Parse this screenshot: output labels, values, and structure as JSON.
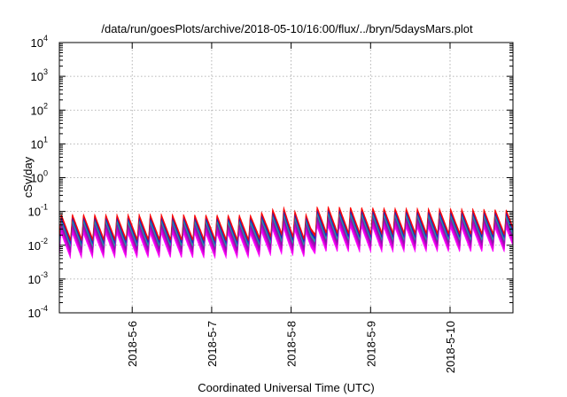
{
  "chart_data": {
    "type": "area",
    "title": "/data/run/goesPlots/archive/2018-05-10/16:00/flux/../bryn/5daysMars.plot",
    "xlabel": "Coordinated Universal Time (UTC)",
    "ylabel": "cSv/day",
    "yscale": "log",
    "ylim": [
      0.0001,
      10000
    ],
    "xlim": [
      "2018-05-05T02:00",
      "2018-05-10T19:00"
    ],
    "grid": true,
    "legend": "none",
    "y_ticks": [
      {
        "base": "10",
        "exp": "-4",
        "value": 0.0001
      },
      {
        "base": "10",
        "exp": "-3",
        "value": 0.001
      },
      {
        "base": "10",
        "exp": "-2",
        "value": 0.01
      },
      {
        "base": "10",
        "exp": "-1",
        "value": 0.1
      },
      {
        "base": "10",
        "exp": "0",
        "value": 1
      },
      {
        "base": "10",
        "exp": "1",
        "value": 10
      },
      {
        "base": "10",
        "exp": "2",
        "value": 100
      },
      {
        "base": "10",
        "exp": "3",
        "value": 1000
      },
      {
        "base": "10",
        "exp": "4",
        "value": 10000
      }
    ],
    "x_ticks": [
      {
        "label": "2018-5-6",
        "value": "2018-05-06T00:00"
      },
      {
        "label": "2018-5-7",
        "value": "2018-05-07T00:00"
      },
      {
        "label": "2018-5-8",
        "value": "2018-05-08T00:00"
      },
      {
        "label": "2018-5-9",
        "value": "2018-05-09T00:00"
      },
      {
        "label": "2018-5-10",
        "value": "2018-05-10T00:00"
      }
    ],
    "series_style": {
      "band_colors": [
        "#ff00ff",
        "#dd00dd",
        "#b000c0",
        "#7a1fa0",
        "#20a0a0",
        "#2020c0",
        "#ff0000"
      ],
      "period_hours": 3.36,
      "envelope": [
        {
          "x": "2018-05-05T02:00",
          "peak": 0.09,
          "trough_low": 0.004
        },
        {
          "x": "2018-05-07T12:00",
          "peak": 0.085,
          "trough_low": 0.004
        },
        {
          "x": "2018-05-07T21:00",
          "peak": 0.15,
          "trough_low": 0.005
        },
        {
          "x": "2018-05-08T06:00",
          "peak": 0.08,
          "trough_low": 0.004
        },
        {
          "x": "2018-05-08T08:00",
          "peak": 0.15,
          "trough_low": 0.006
        },
        {
          "x": "2018-05-10T19:00",
          "peak": 0.12,
          "trough_low": 0.006
        }
      ]
    }
  }
}
